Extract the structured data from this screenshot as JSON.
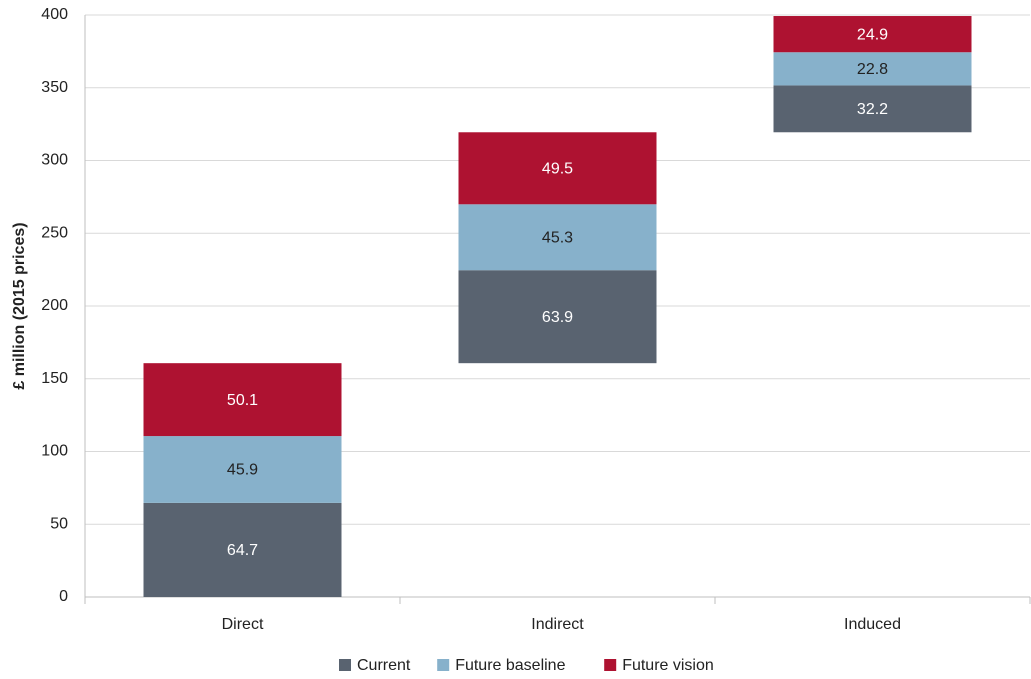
{
  "chart_data": {
    "type": "waterfall_stacked",
    "ylabel": "£ million (2015 prices)",
    "categories": [
      "Direct",
      "Indirect",
      "Induced"
    ],
    "series": [
      {
        "name": "Current",
        "color": "#596370",
        "values": [
          64.7,
          63.9,
          32.2
        ]
      },
      {
        "name": "Future baseline",
        "color": "#87b1cb",
        "values": [
          45.9,
          45.3,
          22.8
        ]
      },
      {
        "name": "Future vision",
        "color": "#ae1231",
        "values": [
          50.1,
          49.5,
          24.9
        ]
      }
    ],
    "ylim": [
      0,
      400
    ],
    "yticks": [
      0,
      50,
      100,
      150,
      200,
      250,
      300,
      350,
      400
    ],
    "grid": true,
    "legend": "bottom"
  }
}
